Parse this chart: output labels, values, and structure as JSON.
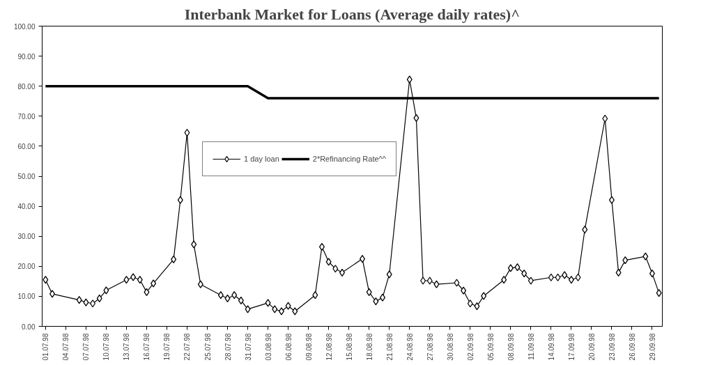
{
  "chart_data": {
    "type": "line",
    "title": "Interbank Market for Loans (Average daily rates)^",
    "x": [
      "1998-07-01",
      "1998-07-02",
      "1998-07-06",
      "1998-07-07",
      "1998-07-08",
      "1998-07-09",
      "1998-07-10",
      "1998-07-13",
      "1998-07-14",
      "1998-07-15",
      "1998-07-16",
      "1998-07-17",
      "1998-07-20",
      "1998-07-21",
      "1998-07-22",
      "1998-07-23",
      "1998-07-24",
      "1998-07-27",
      "1998-07-28",
      "1998-07-29",
      "1998-07-30",
      "1998-07-31",
      "1998-08-03",
      "1998-08-04",
      "1998-08-05",
      "1998-08-06",
      "1998-08-07",
      "1998-08-10",
      "1998-08-11",
      "1998-08-12",
      "1998-08-13",
      "1998-08-14",
      "1998-08-17",
      "1998-08-18",
      "1998-08-19",
      "1998-08-20",
      "1998-08-21",
      "1998-08-24",
      "1998-08-25",
      "1998-08-26",
      "1998-08-27",
      "1998-08-28",
      "1998-08-31",
      "1998-09-01",
      "1998-09-02",
      "1998-09-03",
      "1998-09-04",
      "1998-09-07",
      "1998-09-08",
      "1998-09-09",
      "1998-09-10",
      "1998-09-11",
      "1998-09-14",
      "1998-09-15",
      "1998-09-16",
      "1998-09-17",
      "1998-09-18",
      "1998-09-19",
      "1998-09-22",
      "1998-09-23",
      "1998-09-24",
      "1998-09-25",
      "1998-09-28",
      "1998-09-29",
      "1998-09-30"
    ],
    "series": [
      {
        "name": "1 day loan",
        "color": "#000000",
        "marker": "diamond",
        "values": [
          15.5,
          10.8,
          8.8,
          8.0,
          7.6,
          9.3,
          12.0,
          15.5,
          16.4,
          15.5,
          11.4,
          14.3,
          22.3,
          42.1,
          64.5,
          27.3,
          14.0,
          10.4,
          9.3,
          10.4,
          8.6,
          5.7,
          7.8,
          5.7,
          5.0,
          6.8,
          5.0,
          10.4,
          26.5,
          21.5,
          19.2,
          17.9,
          22.5,
          11.4,
          8.3,
          9.6,
          17.3,
          82.2,
          69.4,
          15.2,
          15.2,
          14.0,
          14.5,
          11.9,
          7.6,
          6.7,
          10.1,
          15.5,
          19.4,
          19.7,
          17.6,
          15.2,
          16.3,
          16.3,
          17.1,
          15.5,
          16.3,
          32.2,
          69.2,
          42.1,
          17.9,
          22.0,
          23.3,
          17.6,
          11.1
        ]
      },
      {
        "name": "2*Refinancing Rate^^",
        "color": "#000000",
        "marker": "none",
        "values": [
          80,
          80,
          80,
          80,
          80,
          80,
          80,
          80,
          80,
          80,
          80,
          80,
          80,
          80,
          80,
          80,
          80,
          80,
          80,
          80,
          80,
          80,
          76,
          76,
          76,
          76,
          76,
          76,
          76,
          76,
          76,
          76,
          76,
          76,
          76,
          76,
          76,
          76,
          76,
          76,
          76,
          76,
          76,
          76,
          76,
          76,
          76,
          76,
          76,
          76,
          76,
          76,
          76,
          76,
          76,
          76,
          76,
          76,
          76,
          76,
          76,
          76,
          76,
          76,
          76
        ]
      }
    ],
    "xlim": [
      "1998-06-30T12:00",
      "1998-09-30T12:00"
    ],
    "xticks": [
      {
        "value": "1998-07-01",
        "label": "01.07.98"
      },
      {
        "value": "1998-07-04",
        "label": "04.07.98"
      },
      {
        "value": "1998-07-07",
        "label": "07.07.98"
      },
      {
        "value": "1998-07-10",
        "label": "10.07.98"
      },
      {
        "value": "1998-07-13",
        "label": "13.07.98"
      },
      {
        "value": "1998-07-16",
        "label": "16.07.98"
      },
      {
        "value": "1998-07-19",
        "label": "19.07.98"
      },
      {
        "value": "1998-07-22",
        "label": "22.07.98"
      },
      {
        "value": "1998-07-25",
        "label": "25.07.98"
      },
      {
        "value": "1998-07-28",
        "label": "28.07.98"
      },
      {
        "value": "1998-07-31",
        "label": "31.07.98"
      },
      {
        "value": "1998-08-03",
        "label": "03.08.98"
      },
      {
        "value": "1998-08-06",
        "label": "06.08.98"
      },
      {
        "value": "1998-08-09",
        "label": "09.08.98"
      },
      {
        "value": "1998-08-12",
        "label": "12.08.98"
      },
      {
        "value": "1998-08-15",
        "label": "15.08.98"
      },
      {
        "value": "1998-08-18",
        "label": "18.08.98"
      },
      {
        "value": "1998-08-21",
        "label": "21.08.98"
      },
      {
        "value": "1998-08-24",
        "label": "24.08.98"
      },
      {
        "value": "1998-08-27",
        "label": "27.08.98"
      },
      {
        "value": "1998-08-30",
        "label": "30.08.98"
      },
      {
        "value": "1998-09-02",
        "label": "02.09.98"
      },
      {
        "value": "1998-09-05",
        "label": "05.09.98"
      },
      {
        "value": "1998-09-08",
        "label": "08.09.98"
      },
      {
        "value": "1998-09-11",
        "label": "11.09.98"
      },
      {
        "value": "1998-09-14",
        "label": "14.09.98"
      },
      {
        "value": "1998-09-17",
        "label": "17.09.98"
      },
      {
        "value": "1998-09-20",
        "label": "20.09.98"
      },
      {
        "value": "1998-09-23",
        "label": "23.09.98"
      },
      {
        "value": "1998-09-26",
        "label": "26.09.98"
      },
      {
        "value": "1998-09-29",
        "label": "29.09.98"
      }
    ],
    "ylim": [
      0,
      100
    ],
    "yticks": [
      {
        "value": 0,
        "label": "0.00"
      },
      {
        "value": 10,
        "label": "10.00"
      },
      {
        "value": 20,
        "label": "20.00"
      },
      {
        "value": 30,
        "label": "30.00"
      },
      {
        "value": 40,
        "label": "40.00"
      },
      {
        "value": 50,
        "label": "50.00"
      },
      {
        "value": 60,
        "label": "60.00"
      },
      {
        "value": 70,
        "label": "70.00"
      },
      {
        "value": 80,
        "label": "80.00"
      },
      {
        "value": 90,
        "label": "90.00"
      },
      {
        "value": 100,
        "label": "100.00"
      }
    ],
    "grid": false,
    "legend": "top"
  }
}
